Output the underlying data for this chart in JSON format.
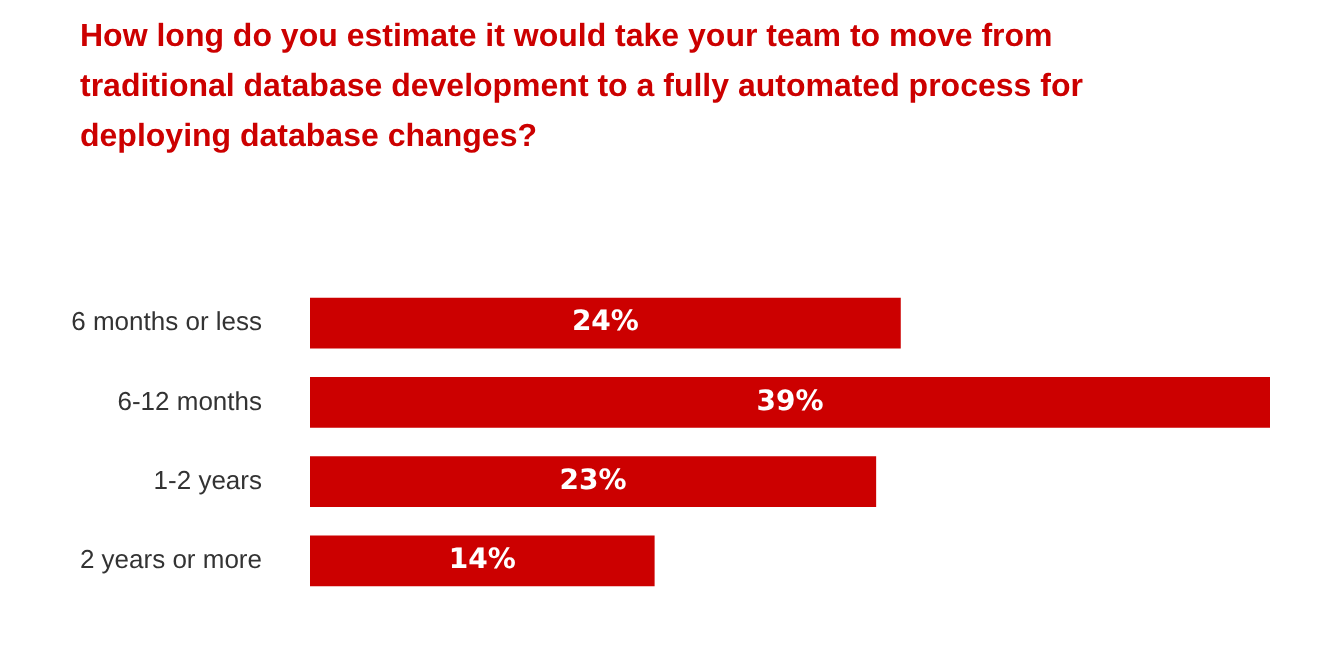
{
  "chart_data": {
    "type": "bar",
    "orientation": "horizontal",
    "title": "How long do you estimate it would take your team to move from traditional database development to a fully automated process for deploying database changes?",
    "categories": [
      "6 months or less",
      "6-12 months",
      "1-2 years",
      "2 years or more"
    ],
    "values": [
      24,
      39,
      23,
      14
    ],
    "value_labels": [
      "24%",
      "39%",
      "23%",
      "14%"
    ],
    "color": "#cc0000",
    "legend": false
  }
}
